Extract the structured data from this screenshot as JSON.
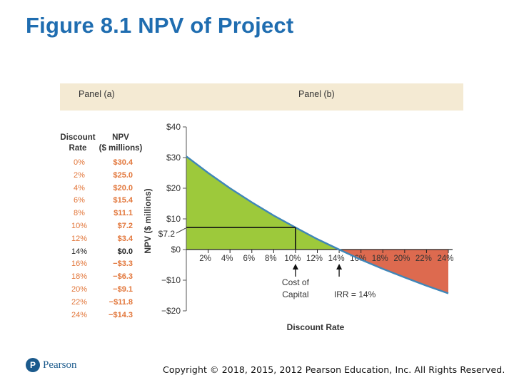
{
  "title": "Figure 8.1 NPV of Project",
  "panels": {
    "a": "Panel (a)",
    "b": "Panel (b)"
  },
  "table": {
    "col1_header_line1": "Discount",
    "col1_header_line2": "Rate",
    "col2_header_line1": "NPV",
    "col2_header_line2": "($ millions)",
    "rows": [
      {
        "rate": "0%",
        "npv": "$30.4"
      },
      {
        "rate": "2%",
        "npv": "$25.0"
      },
      {
        "rate": "4%",
        "npv": "$20.0"
      },
      {
        "rate": "6%",
        "npv": "$15.4"
      },
      {
        "rate": "8%",
        "npv": "$11.1"
      },
      {
        "rate": "10%",
        "npv": "$7.2"
      },
      {
        "rate": "12%",
        "npv": "$3.4"
      },
      {
        "rate": "14%",
        "npv": "$0.0"
      },
      {
        "rate": "16%",
        "npv": "−$3.3"
      },
      {
        "rate": "18%",
        "npv": "−$6.3"
      },
      {
        "rate": "20%",
        "npv": "−$9.1"
      },
      {
        "rate": "22%",
        "npv": "−$11.8"
      },
      {
        "rate": "24%",
        "npv": "−$14.3"
      }
    ]
  },
  "chart_data": {
    "type": "area",
    "x": [
      0,
      2,
      4,
      6,
      8,
      10,
      12,
      14,
      16,
      18,
      20,
      22,
      24
    ],
    "values": [
      30.4,
      25.0,
      20.0,
      15.4,
      11.1,
      7.2,
      3.4,
      0.0,
      -3.3,
      -6.3,
      -9.1,
      -11.8,
      -14.3
    ],
    "xlabel": "Discount Rate",
    "ylabel": "NPV ($ millions)",
    "xlim": [
      0,
      24
    ],
    "ylim": [
      -20,
      40
    ],
    "x_ticks": [
      2,
      4,
      6,
      8,
      10,
      12,
      14,
      16,
      18,
      20,
      22,
      24
    ],
    "x_tick_labels": [
      "2%",
      "4%",
      "6%",
      "8%",
      "10%",
      "12%",
      "14%",
      "16%",
      "18%",
      "20%",
      "22%",
      "24%"
    ],
    "y_ticks": [
      -20,
      -10,
      0,
      10,
      20,
      30,
      40
    ],
    "y_tick_labels": [
      "−$20",
      "−$10",
      "$0",
      "$10",
      "$20",
      "$30",
      "$40"
    ],
    "marker": {
      "x": 10,
      "y": 7.2,
      "y_label": "$7.2"
    },
    "annotations": [
      {
        "x": 10,
        "line1": "Cost of",
        "line2": "Capital"
      },
      {
        "x": 14,
        "line1": "IRR = 14%"
      }
    ],
    "colors": {
      "positive": "#9dc93b",
      "negative": "#dd6a4f",
      "curve": "#3f86b8",
      "axis": "#555555"
    },
    "grid": false
  },
  "footer": {
    "logo_text": "Pearson",
    "copyright": "Copyright © 2018, 2015, 2012 Pearson Education, Inc. All Rights Reserved."
  }
}
